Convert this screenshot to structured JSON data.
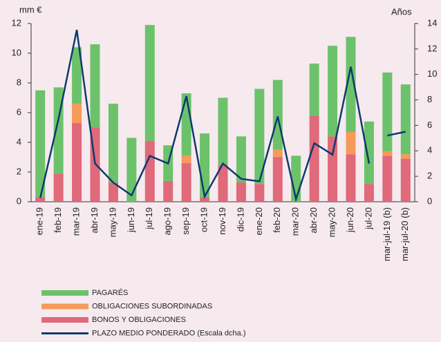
{
  "chart_data": {
    "type": "bar",
    "y_label": "mm €",
    "y2_label": "Años",
    "categories": [
      "ene-19",
      "feb-19",
      "mar-19",
      "abr-19",
      "may-19",
      "jun-19",
      "jul-19",
      "ago-19",
      "sep-19",
      "oct-19",
      "nov-19",
      "dic-19",
      "ene-20",
      "feb-20",
      "mar-20",
      "abr-20",
      "may-20",
      "jun-20",
      "jul-20",
      "mar-jul-19 (b)",
      "mar-jul-20 (b)"
    ],
    "stacked": true,
    "series": [
      {
        "name": "BONOS Y OBLIGACIONES",
        "color": "#e0697a",
        "values": [
          0.3,
          1.9,
          5.3,
          5.0,
          1.3,
          0,
          4.1,
          1.4,
          2.6,
          0.3,
          2.5,
          1.3,
          1.2,
          3.0,
          0,
          5.8,
          4.4,
          3.2,
          1.2,
          3.1,
          2.9
        ]
      },
      {
        "name": "OBLIGACIONES SUBORDINADAS",
        "color": "#f59a5a",
        "values": [
          0,
          0,
          1.3,
          0,
          0,
          0,
          0,
          0,
          0.5,
          0,
          0,
          0,
          0,
          0.5,
          0,
          0,
          0,
          1.5,
          0,
          0.3,
          0.3
        ]
      },
      {
        "name": "PAGARÉS",
        "color": "#6cc26b",
        "values": [
          7.2,
          5.8,
          3.8,
          5.6,
          5.3,
          4.3,
          7.8,
          2.4,
          4.2,
          4.3,
          4.5,
          3.1,
          6.4,
          4.7,
          3.1,
          3.5,
          6.1,
          6.4,
          4.2,
          5.3,
          4.7
        ]
      },
      {
        "name": "PLAZO MEDIO PONDERADO (Escala dcha.)",
        "color": "#0d3a6e",
        "type": "line",
        "axis": "y2",
        "values": [
          0.3,
          6.5,
          13.5,
          3.0,
          1.5,
          0.5,
          3.6,
          3.0,
          8.3,
          0.4,
          3.0,
          1.8,
          1.6,
          6.7,
          0.2,
          4.6,
          3.7,
          10.6,
          3.0,
          5.2,
          5.5
        ]
      }
    ],
    "ylim": [
      0,
      12
    ],
    "yticks": [
      0,
      2,
      4,
      6,
      8,
      10,
      12
    ],
    "y2lim": [
      0,
      14
    ],
    "y2ticks": [
      0,
      2,
      4,
      6,
      8,
      10,
      12,
      14
    ],
    "grid": false
  }
}
